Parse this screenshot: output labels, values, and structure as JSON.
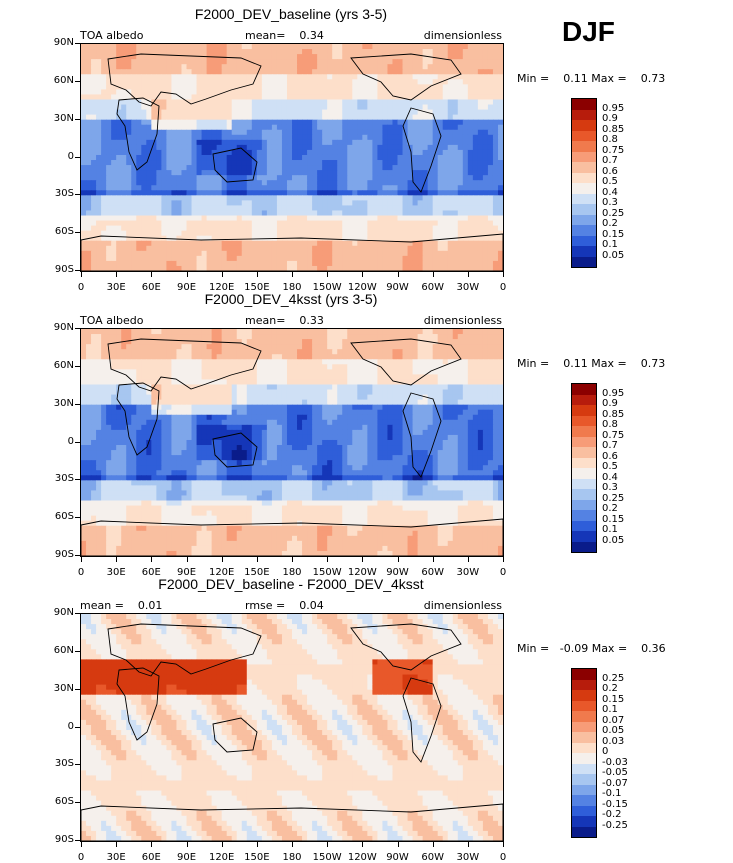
{
  "season": "DJF",
  "axis": {
    "y_ticks": [
      "90N",
      "60N",
      "30N",
      "0",
      "30S",
      "60S",
      "90S"
    ],
    "x_ticks": [
      "0",
      "30E",
      "60E",
      "90E",
      "120E",
      "150E",
      "180",
      "150W",
      "120W",
      "90W",
      "60W",
      "30W",
      "0"
    ]
  },
  "chart_data": [
    {
      "type": "heatmap",
      "title": "F2000_DEV_baseline (yrs 3-5)",
      "left_label": "TOA albedo",
      "center_label": "mean=",
      "center_value": "0.34",
      "right_label": "dimensionless",
      "min_label": "Min =",
      "min_value": "0.11",
      "max_label": "Max =",
      "max_value": "0.73",
      "colorbar": {
        "labels": [
          "0.95",
          "0.9",
          "0.85",
          "0.8",
          "0.75",
          "0.7",
          "0.6",
          "0.5",
          "0.4",
          "0.3",
          "0.25",
          "0.2",
          "0.15",
          "0.1",
          "0.05"
        ],
        "colors": [
          "#8b0000",
          "#b71c0c",
          "#d63a10",
          "#e8582a",
          "#f07a4d",
          "#f79c78",
          "#f9bfa0",
          "#fddfca",
          "#f5f0ec",
          "#cfe0f5",
          "#a7c6f0",
          "#7ea6ea",
          "#5482e3",
          "#2f5ed9",
          "#1536b8",
          "#0a1c8a"
        ]
      }
    },
    {
      "type": "heatmap",
      "title": "F2000_DEV_4ksst (yrs 3-5)",
      "left_label": "TOA albedo",
      "center_label": "mean=",
      "center_value": "0.33",
      "right_label": "dimensionless",
      "min_label": "Min =",
      "min_value": "0.11",
      "max_label": "Max =",
      "max_value": "0.73",
      "colorbar": {
        "labels": [
          "0.95",
          "0.9",
          "0.85",
          "0.8",
          "0.75",
          "0.7",
          "0.6",
          "0.5",
          "0.4",
          "0.3",
          "0.25",
          "0.2",
          "0.15",
          "0.1",
          "0.05"
        ],
        "colors": [
          "#8b0000",
          "#b71c0c",
          "#d63a10",
          "#e8582a",
          "#f07a4d",
          "#f79c78",
          "#f9bfa0",
          "#fddfca",
          "#f5f0ec",
          "#cfe0f5",
          "#a7c6f0",
          "#7ea6ea",
          "#5482e3",
          "#2f5ed9",
          "#1536b8",
          "#0a1c8a"
        ]
      }
    },
    {
      "type": "heatmap",
      "title": "F2000_DEV_baseline - F2000_DEV_4ksst",
      "left_label": "mean =",
      "left_value": "0.01",
      "center_label": "rmse =",
      "center_value": "0.04",
      "right_label": "dimensionless",
      "min_label": "Min =",
      "min_value": "-0.09",
      "max_label": "Max =",
      "max_value": "0.36",
      "colorbar": {
        "labels": [
          "0.25",
          "0.2",
          "0.15",
          "0.1",
          "0.07",
          "0.05",
          "0.03",
          "0",
          "-0.03",
          "-0.05",
          "-0.07",
          "-0.1",
          "-0.15",
          "-0.2",
          "-0.25"
        ],
        "colors": [
          "#8b0000",
          "#b71c0c",
          "#d63a10",
          "#e8582a",
          "#f07a4d",
          "#f79c78",
          "#f9bfa0",
          "#fddfca",
          "#f5f0ec",
          "#cfe0f5",
          "#a7c6f0",
          "#7ea6ea",
          "#5482e3",
          "#2f5ed9",
          "#1536b8",
          "#0a1c8a"
        ]
      }
    }
  ]
}
